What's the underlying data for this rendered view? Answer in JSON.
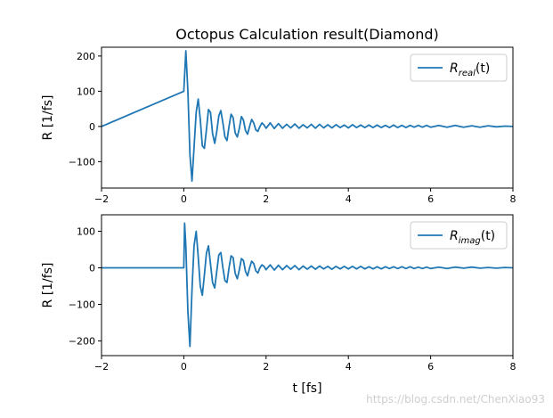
{
  "title": "Octopus Calculation result(Diamond)",
  "watermark": "https://blog.csdn.net/ChenXiao93",
  "colors": {
    "line": "#1f77b4",
    "axes": "#000000",
    "legend_border": "#cccccc"
  },
  "chart_data": [
    {
      "type": "line",
      "title": "Octopus Calculation result(Diamond)",
      "xlabel": "",
      "ylabel": "R [1/fs]",
      "xlim": [
        -2,
        8
      ],
      "ylim": [
        -175,
        225
      ],
      "xticks": [
        "−2",
        "0",
        "2",
        "4",
        "6",
        "8"
      ],
      "yticks": [
        "200",
        "100",
        "0",
        "−100"
      ],
      "ytick_values": [
        200,
        100,
        0,
        -100
      ],
      "legend_position": "top-right",
      "series": [
        {
          "name_main": "R",
          "name_sub": "real",
          "name_tail": "(t)",
          "x": [
            -2,
            0.0,
            0.05,
            0.1,
            0.15,
            0.2,
            0.25,
            0.3,
            0.35,
            0.4,
            0.45,
            0.5,
            0.55,
            0.6,
            0.65,
            0.7,
            0.75,
            0.8,
            0.85,
            0.9,
            0.95,
            1.0,
            1.05,
            1.1,
            1.15,
            1.2,
            1.25,
            1.3,
            1.35,
            1.4,
            1.45,
            1.5,
            1.55,
            1.6,
            1.65,
            1.7,
            1.75,
            1.8,
            1.85,
            1.9,
            1.95,
            2.0,
            2.1,
            2.2,
            2.3,
            2.4,
            2.5,
            2.6,
            2.7,
            2.8,
            2.9,
            3.0,
            3.1,
            3.2,
            3.3,
            3.4,
            3.5,
            3.6,
            3.7,
            3.8,
            3.9,
            4.0,
            4.1,
            4.2,
            4.3,
            4.4,
            4.5,
            4.6,
            4.7,
            4.8,
            4.9,
            5.0,
            5.1,
            5.2,
            5.3,
            5.4,
            5.5,
            5.6,
            5.7,
            5.8,
            5.9,
            6.0,
            6.2,
            6.4,
            6.6,
            6.8,
            7.0,
            7.2,
            7.4,
            7.6,
            7.8,
            8.0
          ],
          "y": [
            0,
            100,
            215,
            100,
            -80,
            -155,
            -60,
            40,
            78,
            20,
            -55,
            -62,
            -10,
            48,
            40,
            -20,
            -48,
            -15,
            30,
            45,
            10,
            -30,
            -40,
            0,
            35,
            25,
            -18,
            -30,
            -5,
            28,
            18,
            -12,
            -22,
            0,
            20,
            10,
            -10,
            -14,
            0,
            10,
            4,
            -5,
            10,
            -6,
            8,
            -5,
            6,
            -4,
            7,
            -5,
            5,
            -4,
            6,
            -5,
            6,
            -4,
            5,
            -4,
            5,
            -3,
            4,
            -4,
            5,
            -3,
            4,
            -3,
            4,
            -3,
            4,
            -3,
            3,
            -3,
            4,
            -3,
            3,
            -3,
            3,
            -2,
            3,
            -2,
            3,
            -2,
            3,
            -2,
            3,
            -2,
            2,
            -2,
            2,
            -1,
            1,
            0
          ]
        }
      ]
    },
    {
      "type": "line",
      "title": "",
      "xlabel": "t [fs]",
      "ylabel": "R [1/fs]",
      "xlim": [
        -2,
        8
      ],
      "ylim": [
        -240,
        145
      ],
      "xticks": [
        "−2",
        "0",
        "2",
        "4",
        "6",
        "8"
      ],
      "yticks": [
        "100",
        "0",
        "−100",
        "−200"
      ],
      "ytick_values": [
        100,
        0,
        -100,
        -200
      ],
      "legend_position": "top-right",
      "series": [
        {
          "name_main": "R",
          "name_sub": "imag",
          "name_tail": "(t)",
          "x": [
            -2,
            0.0,
            0.02,
            0.05,
            0.1,
            0.15,
            0.2,
            0.25,
            0.3,
            0.35,
            0.4,
            0.45,
            0.5,
            0.55,
            0.6,
            0.65,
            0.7,
            0.75,
            0.8,
            0.85,
            0.9,
            0.95,
            1.0,
            1.05,
            1.1,
            1.15,
            1.2,
            1.25,
            1.3,
            1.35,
            1.4,
            1.45,
            1.5,
            1.55,
            1.6,
            1.65,
            1.7,
            1.75,
            1.8,
            1.85,
            1.9,
            1.95,
            2.0,
            2.1,
            2.2,
            2.3,
            2.4,
            2.5,
            2.6,
            2.7,
            2.8,
            2.9,
            3.0,
            3.1,
            3.2,
            3.3,
            3.4,
            3.5,
            3.6,
            3.7,
            3.8,
            3.9,
            4.0,
            4.1,
            4.2,
            4.3,
            4.4,
            4.5,
            4.6,
            4.7,
            4.8,
            4.9,
            5.0,
            5.1,
            5.2,
            5.3,
            5.4,
            5.5,
            5.6,
            5.7,
            5.8,
            5.9,
            6.0,
            6.2,
            6.4,
            6.6,
            6.8,
            7.0,
            7.2,
            7.4,
            7.6,
            7.8,
            8.0
          ],
          "y": [
            0,
            0,
            122,
            60,
            -120,
            -215,
            -60,
            60,
            100,
            30,
            -50,
            -75,
            -20,
            40,
            60,
            10,
            -40,
            -55,
            -10,
            35,
            42,
            0,
            -35,
            -40,
            0,
            33,
            28,
            -15,
            -30,
            -5,
            25,
            20,
            -10,
            -22,
            0,
            18,
            12,
            -8,
            -14,
            0,
            8,
            4,
            -5,
            8,
            -6,
            7,
            -5,
            6,
            -4,
            6,
            -5,
            5,
            -4,
            5,
            -4,
            5,
            -3,
            4,
            -4,
            4,
            -3,
            4,
            -3,
            4,
            -3,
            4,
            -3,
            3,
            -3,
            3,
            -3,
            3,
            -2,
            3,
            -2,
            3,
            -2,
            3,
            -2,
            2,
            -2,
            2,
            -2,
            2,
            -2,
            2,
            -1,
            2,
            -1,
            1,
            -1,
            1,
            0
          ]
        }
      ]
    }
  ]
}
